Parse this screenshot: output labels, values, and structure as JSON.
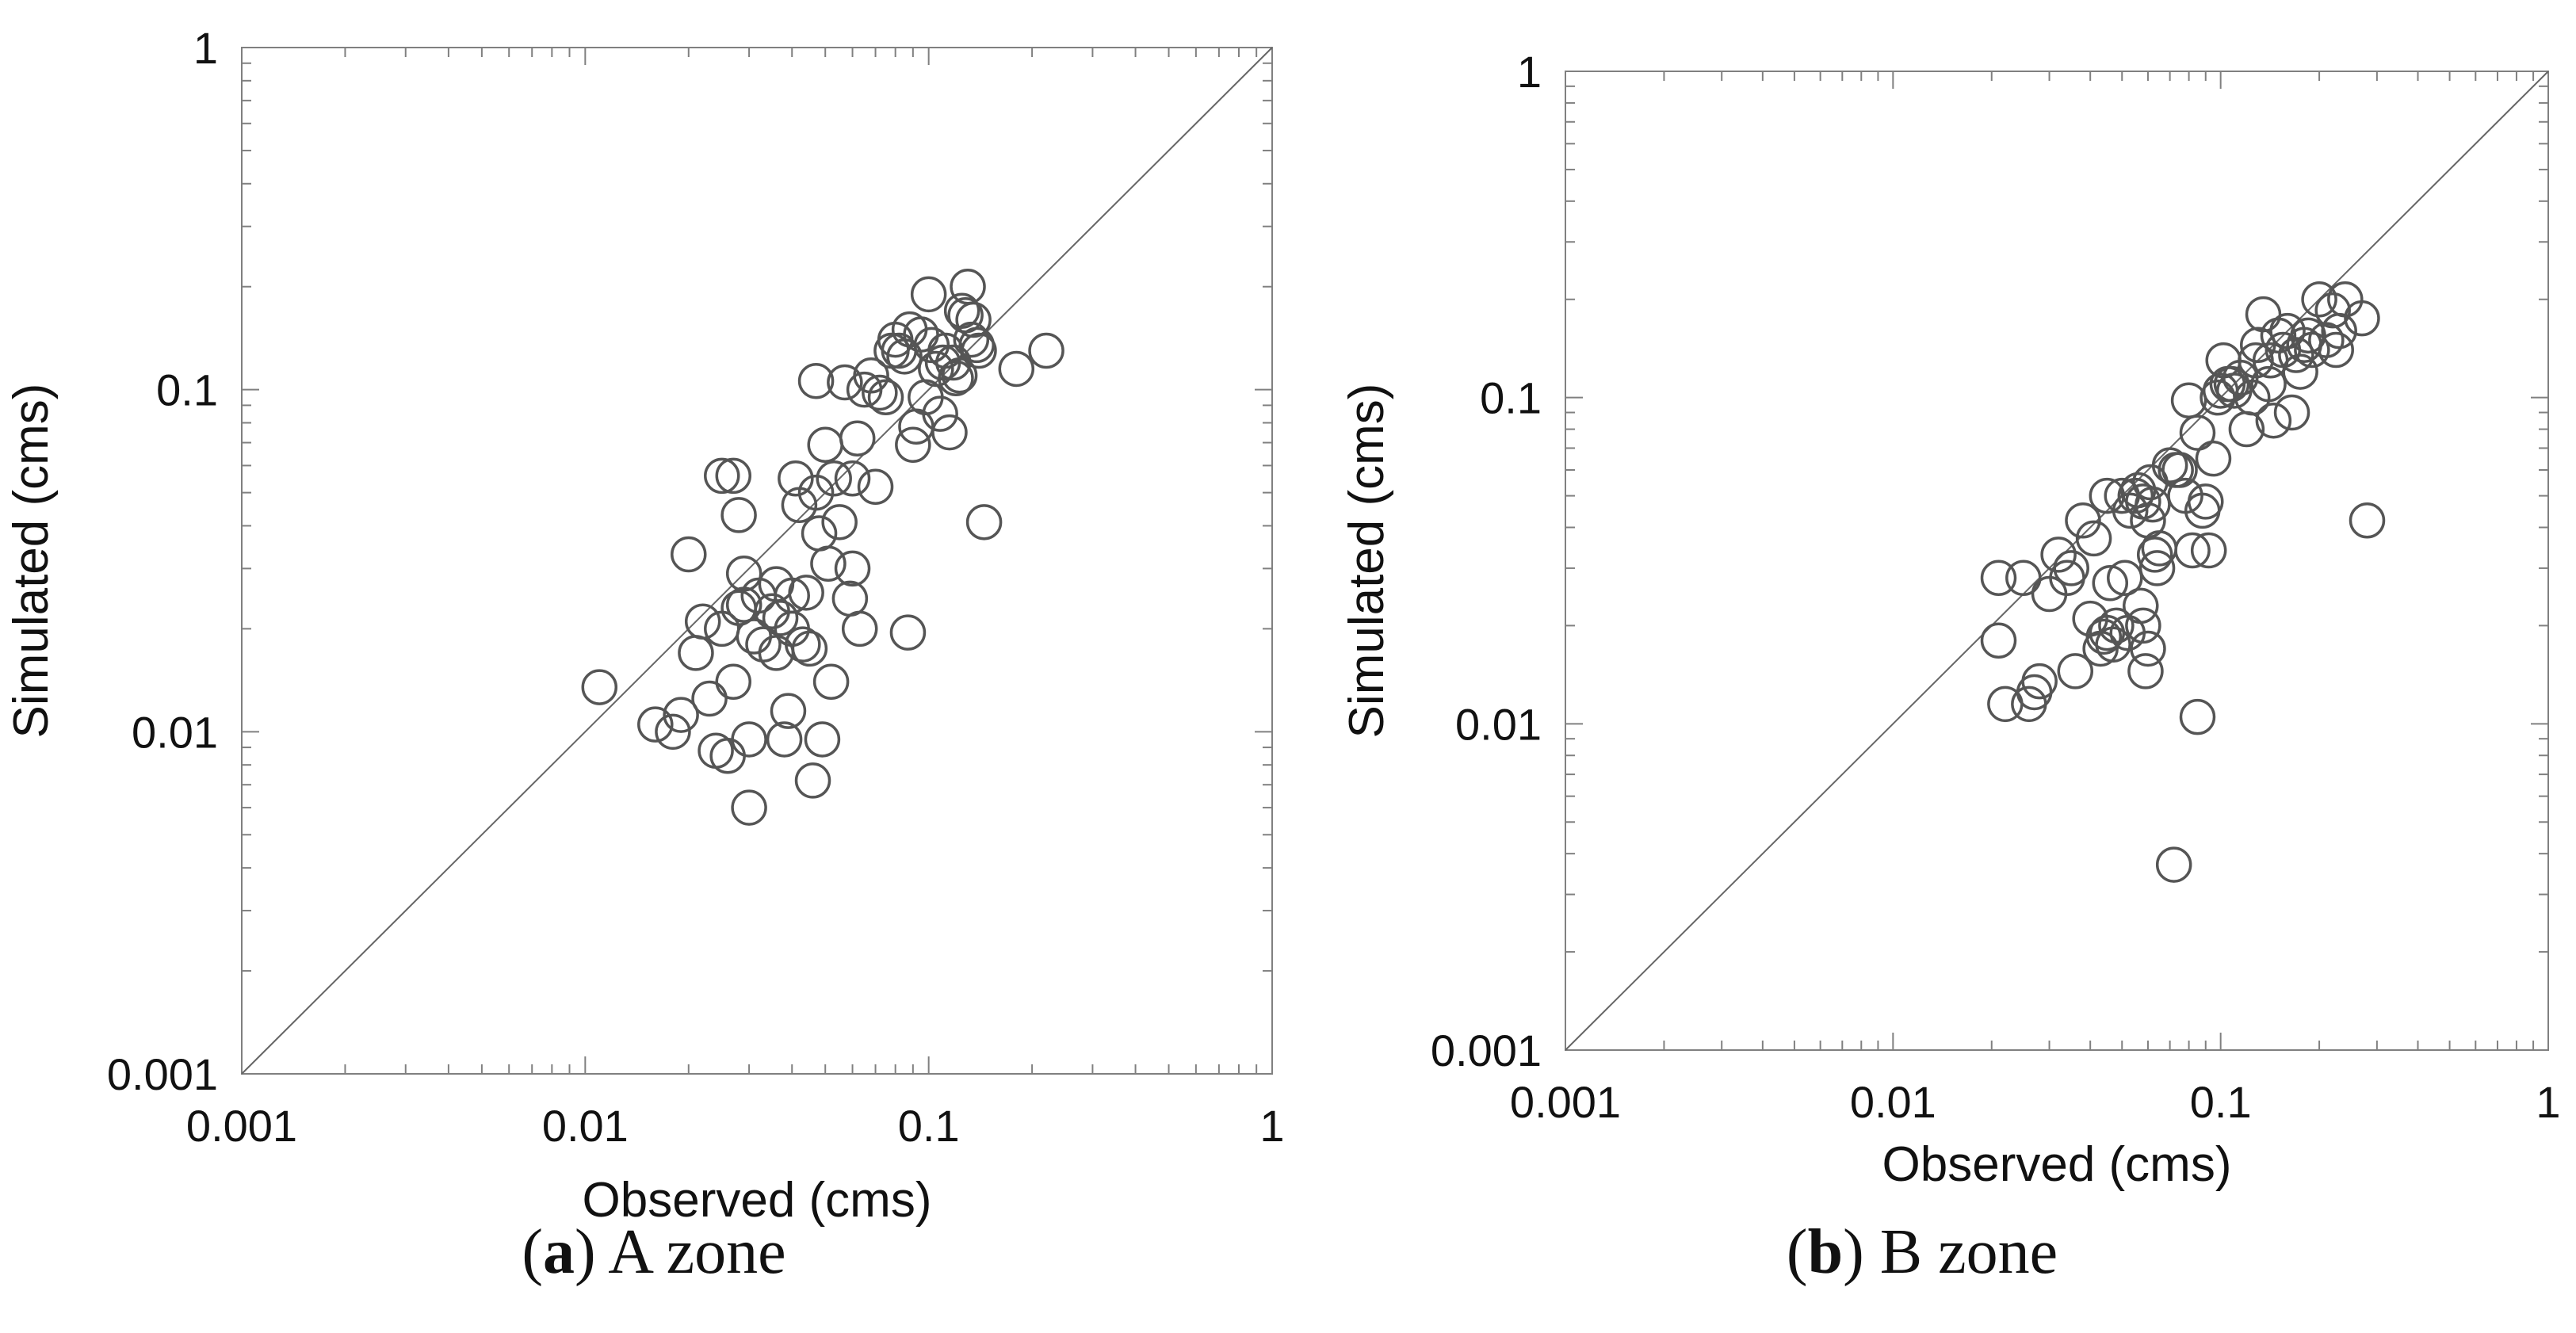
{
  "colors": {
    "axis": "#808080",
    "marker": "#555555",
    "diagonal": "#666666",
    "text": "#111111"
  },
  "chart_data": [
    {
      "type": "scatter",
      "scale": "log-log",
      "xlabel": "Observed (cms)",
      "ylabel": "Simulated (cms)",
      "xlim": [
        0.001,
        1
      ],
      "ylim": [
        0.001,
        1
      ],
      "xticks": [
        "0.001",
        "0.01",
        "0.1",
        "1"
      ],
      "yticks": [
        "0.001",
        "0.01",
        "0.1",
        "1"
      ],
      "reference_line": "1:1",
      "caption_label": "a",
      "caption_text": "A zone",
      "series": [
        {
          "name": "A zone",
          "x": [
            0.011,
            0.016,
            0.018,
            0.019,
            0.02,
            0.021,
            0.022,
            0.023,
            0.024,
            0.025,
            0.025,
            0.026,
            0.027,
            0.027,
            0.028,
            0.028,
            0.029,
            0.029,
            0.03,
            0.031,
            0.032,
            0.033,
            0.035,
            0.036,
            0.037,
            0.038,
            0.039,
            0.04,
            0.041,
            0.042,
            0.043,
            0.044,
            0.045,
            0.046,
            0.047,
            0.048,
            0.049,
            0.05,
            0.051,
            0.052,
            0.053,
            0.055,
            0.057,
            0.059,
            0.06,
            0.062,
            0.063,
            0.065,
            0.068,
            0.07,
            0.072,
            0.075,
            0.078,
            0.08,
            0.082,
            0.085,
            0.088,
            0.09,
            0.092,
            0.095,
            0.098,
            0.1,
            0.102,
            0.105,
            0.108,
            0.11,
            0.112,
            0.115,
            0.118,
            0.12,
            0.123,
            0.125,
            0.128,
            0.13,
            0.133,
            0.135,
            0.138,
            0.14,
            0.145,
            0.18,
            0.22,
            0.03,
            0.04,
            0.06,
            0.087,
            0.047,
            0.036
          ],
          "y": [
            0.0135,
            0.0105,
            0.01,
            0.0112,
            0.033,
            0.017,
            0.021,
            0.0125,
            0.0088,
            0.02,
            0.056,
            0.0085,
            0.014,
            0.056,
            0.043,
            0.023,
            0.029,
            0.0235,
            0.006,
            0.019,
            0.025,
            0.018,
            0.0225,
            0.027,
            0.0215,
            0.0095,
            0.0115,
            0.025,
            0.055,
            0.046,
            0.018,
            0.0255,
            0.0175,
            0.0072,
            0.106,
            0.038,
            0.0095,
            0.069,
            0.031,
            0.014,
            0.055,
            0.041,
            0.105,
            0.0245,
            0.055,
            0.072,
            0.02,
            0.1,
            0.11,
            0.052,
            0.098,
            0.095,
            0.13,
            0.14,
            0.13,
            0.125,
            0.15,
            0.069,
            0.078,
            0.145,
            0.095,
            0.19,
            0.135,
            0.115,
            0.085,
            0.12,
            0.13,
            0.075,
            0.12,
            0.108,
            0.11,
            0.17,
            0.165,
            0.2,
            0.14,
            0.16,
            0.135,
            0.13,
            0.041,
            0.115,
            0.13,
            0.0095,
            0.02,
            0.03,
            0.0195,
            0.05,
            0.017
          ]
        }
      ]
    },
    {
      "type": "scatter",
      "scale": "log-log",
      "xlabel": "Observed (cms)",
      "ylabel": "Simulated (cms)",
      "xlim": [
        0.001,
        1
      ],
      "ylim": [
        0.001,
        1
      ],
      "xticks": [
        "0.001",
        "0.01",
        "0.1",
        "1"
      ],
      "yticks": [
        "0.001",
        "0.01",
        "0.1",
        "1"
      ],
      "reference_line": "1:1",
      "caption_label": "b",
      "caption_text": "B zone",
      "series": [
        {
          "name": "B zone",
          "x": [
            0.021,
            0.021,
            0.022,
            0.025,
            0.026,
            0.027,
            0.028,
            0.03,
            0.032,
            0.034,
            0.035,
            0.036,
            0.038,
            0.04,
            0.041,
            0.043,
            0.044,
            0.045,
            0.046,
            0.047,
            0.048,
            0.05,
            0.051,
            0.052,
            0.053,
            0.055,
            0.056,
            0.057,
            0.058,
            0.059,
            0.06,
            0.061,
            0.062,
            0.063,
            0.064,
            0.065,
            0.07,
            0.072,
            0.075,
            0.078,
            0.08,
            0.082,
            0.085,
            0.088,
            0.09,
            0.092,
            0.095,
            0.098,
            0.1,
            0.102,
            0.105,
            0.108,
            0.11,
            0.115,
            0.12,
            0.125,
            0.128,
            0.13,
            0.135,
            0.14,
            0.142,
            0.145,
            0.15,
            0.155,
            0.16,
            0.165,
            0.17,
            0.175,
            0.18,
            0.185,
            0.19,
            0.2,
            0.21,
            0.22,
            0.225,
            0.23,
            0.24,
            0.27,
            0.28,
            0.073,
            0.085,
            0.06,
            0.058,
            0.045
          ],
          "y": [
            0.018,
            0.028,
            0.0115,
            0.028,
            0.0115,
            0.0125,
            0.0135,
            0.025,
            0.033,
            0.028,
            0.03,
            0.0145,
            0.042,
            0.021,
            0.037,
            0.017,
            0.0185,
            0.019,
            0.027,
            0.0175,
            0.02,
            0.05,
            0.028,
            0.019,
            0.045,
            0.05,
            0.052,
            0.023,
            0.02,
            0.0145,
            0.042,
            0.055,
            0.047,
            0.033,
            0.03,
            0.0345,
            0.062,
            0.0037,
            0.06,
            0.05,
            0.098,
            0.034,
            0.078,
            0.045,
            0.048,
            0.034,
            0.065,
            0.1,
            0.105,
            0.13,
            0.11,
            0.11,
            0.105,
            0.115,
            0.08,
            0.1,
            0.13,
            0.145,
            0.18,
            0.11,
            0.13,
            0.085,
            0.155,
            0.14,
            0.16,
            0.09,
            0.135,
            0.12,
            0.145,
            0.155,
            0.14,
            0.2,
            0.15,
            0.185,
            0.14,
            0.16,
            0.2,
            0.175,
            0.042,
            0.06,
            0.0105,
            0.017,
            0.048,
            0.05
          ],
          "notes": ""
        }
      ]
    }
  ]
}
